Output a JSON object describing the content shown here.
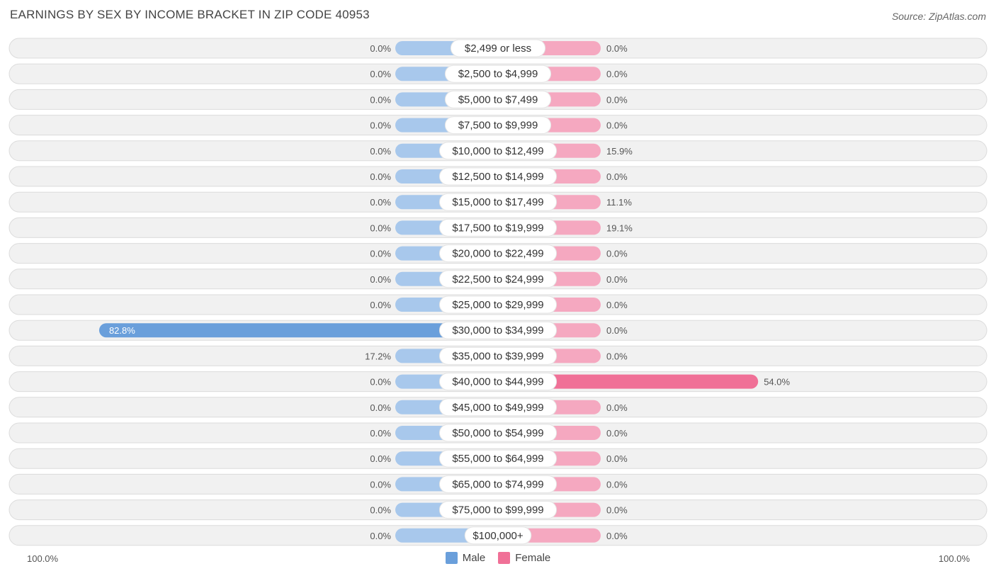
{
  "title": "EARNINGS BY SEX BY INCOME BRACKET IN ZIP CODE 40953",
  "source": "Source: ZipAtlas.com",
  "axis": {
    "left_label": "100.0%",
    "right_label": "100.0%"
  },
  "legend": [
    {
      "name": "Male",
      "color": "#6a9fdb"
    },
    {
      "name": "Female",
      "color": "#f07097"
    }
  ],
  "colors": {
    "male_bar": "#a8c8ec",
    "male_bar_strong": "#6a9fdb",
    "female_bar": "#f5a8c0",
    "female_bar_strong": "#f07097"
  },
  "chart_data": {
    "type": "bar",
    "orientation": "horizontal-diverging",
    "title": "EARNINGS BY SEX BY INCOME BRACKET IN ZIP CODE 40953",
    "xlim": [
      -100,
      100
    ],
    "categories": [
      "$2,499 or less",
      "$2,500 to $4,999",
      "$5,000 to $7,499",
      "$7,500 to $9,999",
      "$10,000 to $12,499",
      "$12,500 to $14,999",
      "$15,000 to $17,499",
      "$17,500 to $19,999",
      "$20,000 to $22,499",
      "$22,500 to $24,999",
      "$25,000 to $29,999",
      "$30,000 to $34,999",
      "$35,000 to $39,999",
      "$40,000 to $44,999",
      "$45,000 to $49,999",
      "$50,000 to $54,999",
      "$55,000 to $64,999",
      "$65,000 to $74,999",
      "$75,000 to $99,999",
      "$100,000+"
    ],
    "series": [
      {
        "name": "Male",
        "values": [
          0.0,
          0.0,
          0.0,
          0.0,
          0.0,
          0.0,
          0.0,
          0.0,
          0.0,
          0.0,
          0.0,
          82.8,
          17.2,
          0.0,
          0.0,
          0.0,
          0.0,
          0.0,
          0.0,
          0.0
        ],
        "labels": [
          "0.0%",
          "0.0%",
          "0.0%",
          "0.0%",
          "0.0%",
          "0.0%",
          "0.0%",
          "0.0%",
          "0.0%",
          "0.0%",
          "0.0%",
          "82.8%",
          "17.2%",
          "0.0%",
          "0.0%",
          "0.0%",
          "0.0%",
          "0.0%",
          "0.0%",
          "0.0%"
        ]
      },
      {
        "name": "Female",
        "values": [
          0.0,
          0.0,
          0.0,
          0.0,
          15.9,
          0.0,
          11.1,
          19.1,
          0.0,
          0.0,
          0.0,
          0.0,
          0.0,
          54.0,
          0.0,
          0.0,
          0.0,
          0.0,
          0.0,
          0.0
        ],
        "labels": [
          "0.0%",
          "0.0%",
          "0.0%",
          "0.0%",
          "15.9%",
          "0.0%",
          "11.1%",
          "19.1%",
          "0.0%",
          "0.0%",
          "0.0%",
          "0.0%",
          "0.0%",
          "54.0%",
          "0.0%",
          "0.0%",
          "0.0%",
          "0.0%",
          "0.0%",
          "0.0%"
        ]
      }
    ]
  }
}
